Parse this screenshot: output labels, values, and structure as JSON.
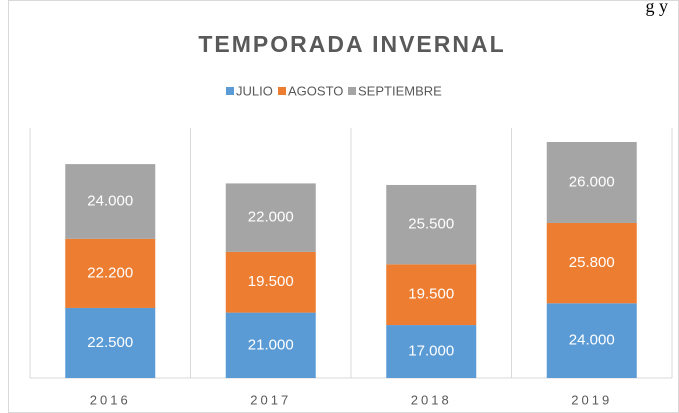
{
  "page_fragment": "g y",
  "chart_data": {
    "type": "stacked_bar",
    "title": "TEMPORADA INVERNAL",
    "categories": [
      "2016",
      "2017",
      "2018",
      "2019"
    ],
    "series": [
      {
        "name": "JULIO",
        "color": "#5b9bd5",
        "values": [
          22500,
          21000,
          17000,
          24000
        ],
        "value_labels": [
          "22.500",
          "21.000",
          "17.000",
          "24.000"
        ]
      },
      {
        "name": "AGOSTO",
        "color": "#ed7d31",
        "values": [
          22200,
          19500,
          19500,
          25800
        ],
        "value_labels": [
          "22.200",
          "19.500",
          "19.500",
          "25.800"
        ]
      },
      {
        "name": "SEPTIEMBRE",
        "color": "#a5a5a5",
        "values": [
          24000,
          22000,
          25500,
          26000
        ],
        "value_labels": [
          "24.000",
          "22.000",
          "25.500",
          "26.000"
        ]
      }
    ],
    "legend": "top"
  }
}
